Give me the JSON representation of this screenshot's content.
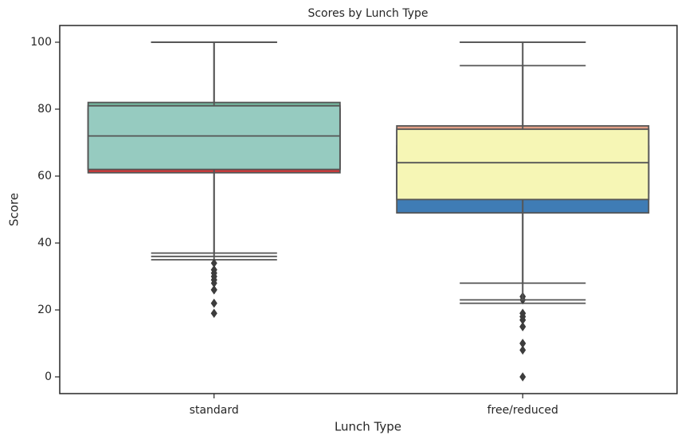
{
  "chart_data": {
    "type": "box",
    "title": "Scores by Lunch Type",
    "x_label": "Lunch Type",
    "y_label": "Score",
    "categories": [
      "standard",
      "free/reduced"
    ],
    "ylim": [
      -5,
      105
    ],
    "yticks": [
      0,
      20,
      40,
      60,
      80,
      100
    ],
    "line_color": "#555555",
    "series": [
      {
        "colors": [
          "#cc3a3b",
          "#3f7cb5"
        ],
        "boxes": [
          {
            "q1": 61,
            "median": 69,
            "q3": 80,
            "whisker_low": 35,
            "whisker_high": 100,
            "fliers": [
              19,
              22,
              26,
              29,
              30,
              31,
              32,
              34
            ]
          },
          {
            "q1": 49,
            "median": 60,
            "q3": 69,
            "whisker_low": 22,
            "whisker_high": 93,
            "fliers": [
              0,
              8,
              10,
              15,
              17,
              18,
              19
            ]
          }
        ]
      },
      {
        "colors": [
          "#74b39c",
          "#e29f86"
        ],
        "boxes": [
          {
            "q1": 62,
            "median": 72,
            "q3": 82,
            "whisker_low": 37,
            "whisker_high": 100,
            "fliers": [
              26,
              28,
              29,
              31,
              32
            ]
          },
          {
            "q1": 55,
            "median": 65,
            "q3": 75,
            "whisker_low": 28,
            "whisker_high": 100,
            "fliers": [
              17,
              18,
              23,
              24
            ]
          }
        ]
      },
      {
        "colors": [
          "#96cbc0",
          "#f6f6b5"
        ],
        "boxes": [
          {
            "q1": 62,
            "median": 72,
            "q3": 81,
            "whisker_low": 36,
            "whisker_high": 100,
            "fliers": [
              19,
              22,
              26,
              30
            ]
          },
          {
            "q1": 53,
            "median": 64,
            "q3": 74,
            "whisker_low": 23,
            "whisker_high": 100,
            "fliers": [
              10,
              15,
              19
            ]
          }
        ]
      }
    ]
  }
}
